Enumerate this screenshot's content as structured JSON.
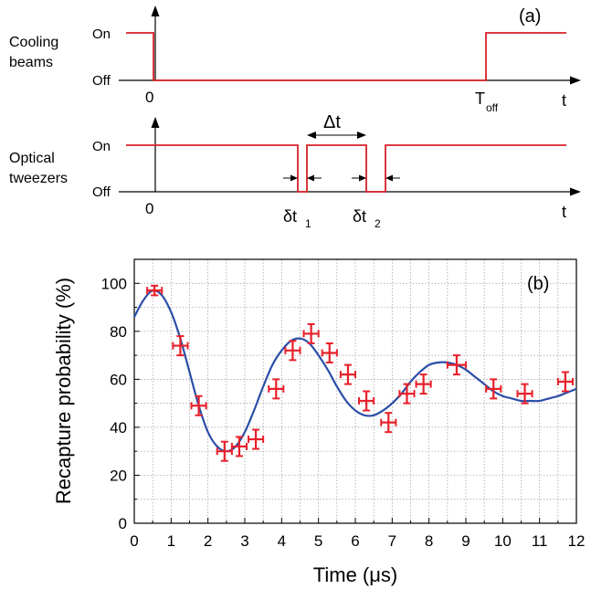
{
  "panel_a": {
    "label": "(a)",
    "cooling": {
      "name_line1": "Cooling",
      "name_line2": "beams",
      "on_label": "On",
      "off_label": "Off",
      "zero_label": "0",
      "toff_main": "T",
      "toff_sub": "off",
      "t_label": "t"
    },
    "tweezers": {
      "name_line1": "Optical",
      "name_line2": "tweezers",
      "on_label": "On",
      "off_label": "Off",
      "zero_label": "0",
      "delta_t_label": "Δt",
      "dt1_main": "δt",
      "dt1_sub": "1",
      "dt2_main": "δt",
      "dt2_sub": "2",
      "t_label": "t"
    }
  },
  "chart_data": {
    "type": "scatter",
    "panel_label": "(b)",
    "xlabel": "Time (μs)",
    "ylabel": "Recapture probability (%)",
    "xlim": [
      0,
      12
    ],
    "ylim": [
      0,
      110
    ],
    "xticks": [
      "0",
      "1",
      "2",
      "3",
      "4",
      "5",
      "6",
      "7",
      "8",
      "9",
      "10",
      "11",
      "12"
    ],
    "yticks": [
      "0",
      "20",
      "40",
      "60",
      "80",
      "100"
    ],
    "grid": true,
    "colors": {
      "points": "#e8202a",
      "fit": "#2b4ea8",
      "pulse": "#d62027"
    },
    "points": [
      {
        "x": 0.55,
        "y": 97,
        "xerr": 0.2,
        "yerr": 2
      },
      {
        "x": 1.25,
        "y": 74,
        "xerr": 0.2,
        "yerr": 4
      },
      {
        "x": 1.75,
        "y": 49,
        "xerr": 0.2,
        "yerr": 4
      },
      {
        "x": 2.45,
        "y": 30,
        "xerr": 0.2,
        "yerr": 4
      },
      {
        "x": 2.85,
        "y": 32,
        "xerr": 0.2,
        "yerr": 4
      },
      {
        "x": 3.3,
        "y": 35,
        "xerr": 0.2,
        "yerr": 4
      },
      {
        "x": 3.85,
        "y": 56,
        "xerr": 0.2,
        "yerr": 4
      },
      {
        "x": 4.3,
        "y": 72,
        "xerr": 0.2,
        "yerr": 4
      },
      {
        "x": 4.8,
        "y": 79,
        "xerr": 0.2,
        "yerr": 4
      },
      {
        "x": 5.3,
        "y": 71,
        "xerr": 0.2,
        "yerr": 4
      },
      {
        "x": 5.8,
        "y": 62,
        "xerr": 0.2,
        "yerr": 4
      },
      {
        "x": 6.3,
        "y": 51,
        "xerr": 0.2,
        "yerr": 4
      },
      {
        "x": 6.9,
        "y": 42,
        "xerr": 0.2,
        "yerr": 4
      },
      {
        "x": 7.4,
        "y": 54,
        "xerr": 0.2,
        "yerr": 4
      },
      {
        "x": 7.85,
        "y": 58,
        "xerr": 0.2,
        "yerr": 4
      },
      {
        "x": 8.75,
        "y": 66,
        "xerr": 0.25,
        "yerr": 4
      },
      {
        "x": 9.75,
        "y": 56,
        "xerr": 0.2,
        "yerr": 4
      },
      {
        "x": 10.6,
        "y": 54,
        "xerr": 0.2,
        "yerr": 4
      },
      {
        "x": 11.7,
        "y": 59,
        "xerr": 0.2,
        "yerr": 4
      }
    ],
    "fit_curve": {
      "x": [
        0,
        0.25,
        0.5,
        0.75,
        1,
        1.25,
        1.5,
        1.75,
        2,
        2.25,
        2.5,
        2.75,
        3,
        3.25,
        3.5,
        3.75,
        4,
        4.25,
        4.5,
        4.75,
        5,
        5.25,
        5.5,
        5.75,
        6,
        6.25,
        6.5,
        6.75,
        7,
        7.25,
        7.5,
        7.75,
        8,
        8.25,
        8.5,
        8.75,
        9,
        9.25,
        9.5,
        9.75,
        10,
        10.25,
        10.5,
        10.75,
        11,
        11.25,
        11.5,
        11.75,
        12
      ],
      "y": [
        86,
        93,
        97,
        95,
        88,
        77,
        63,
        49,
        38,
        32,
        30,
        32,
        38,
        47,
        57,
        66,
        72,
        76,
        77,
        75,
        70,
        64,
        57,
        51,
        47,
        45,
        45,
        47,
        50,
        54,
        59,
        63,
        66,
        67,
        67,
        66,
        64,
        61,
        58,
        55,
        53,
        52,
        51,
        51,
        51,
        52,
        53,
        54.5,
        56
      ]
    }
  }
}
